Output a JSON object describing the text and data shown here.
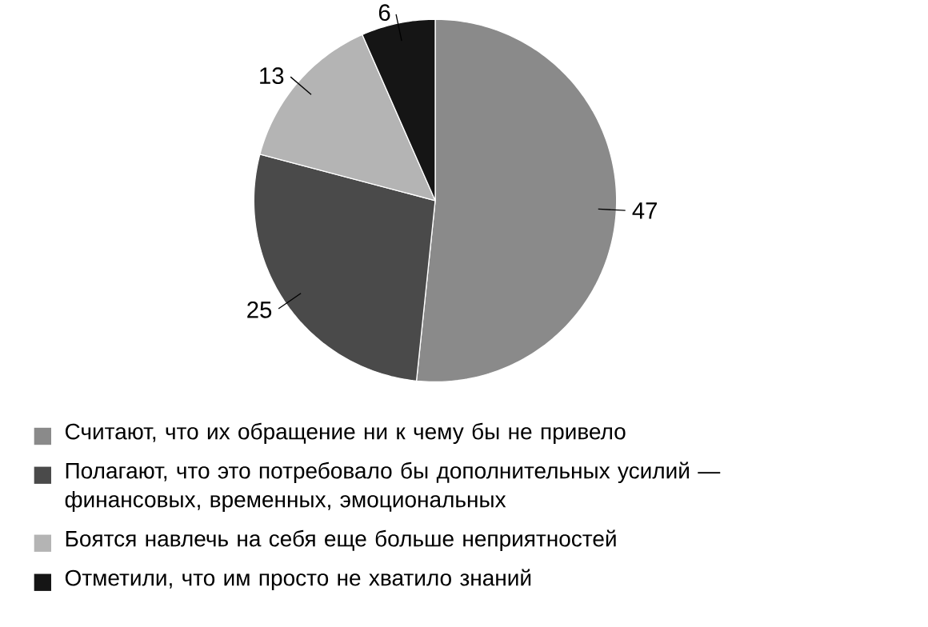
{
  "chart_data": {
    "type": "pie",
    "categories": [
      "Считают, что их обращение ни к чему бы не привело",
      "Полагают, что это потребовало бы дополнительных усилий — финансовых, временных, эмоциональных",
      "Боятся навлечь на себя еще больше неприятностей",
      "Отметили, что им просто не хватило знаний"
    ],
    "values": [
      47,
      25,
      13,
      6
    ],
    "colors": [
      "#8a8a8a",
      "#4a4a4a",
      "#b4b4b4",
      "#151515"
    ],
    "data_labels": true,
    "legend": "bottom"
  }
}
